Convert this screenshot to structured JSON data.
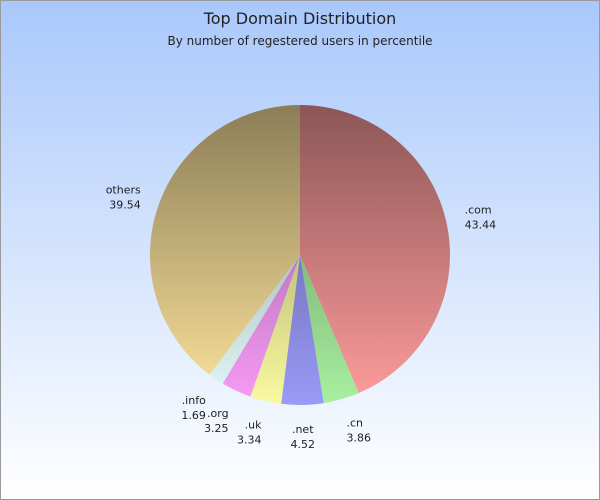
{
  "chart_data": {
    "type": "pie",
    "title": "Top Domain Distribution",
    "subtitle": "By number of regestered users in percentile",
    "categories": [
      ".com",
      ".cn",
      ".net",
      ".uk",
      ".org",
      ".info",
      "others"
    ],
    "values": [
      43.44,
      3.86,
      4.52,
      3.34,
      3.25,
      1.69,
      39.54
    ],
    "colors": [
      "#ff9c9c",
      "#a8f0a0",
      "#9a9af8",
      "#fafaa0",
      "#f89cf8",
      "#e4fafa",
      "#fde39c"
    ]
  }
}
